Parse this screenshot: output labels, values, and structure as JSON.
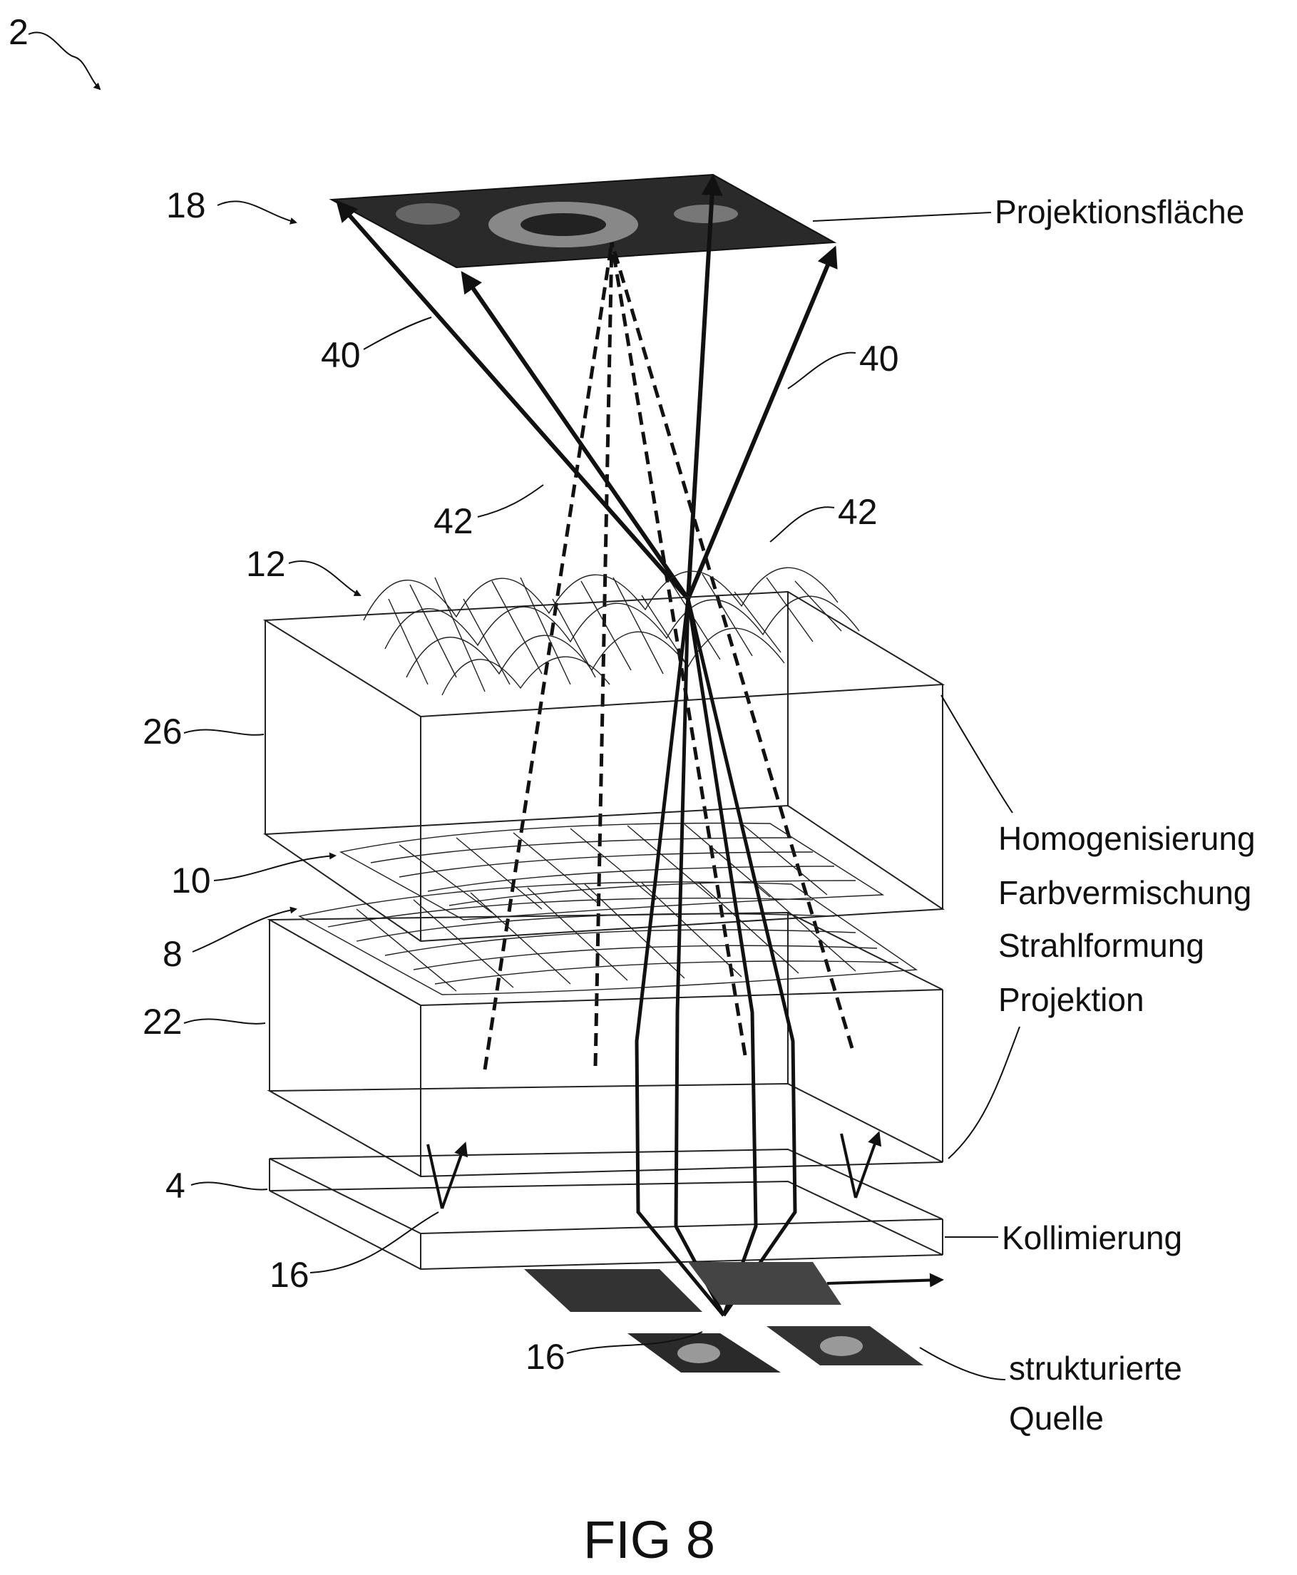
{
  "figure": {
    "caption": "FIG 8",
    "refs": {
      "r2": "2",
      "r18": "18",
      "r40a": "40",
      "r40b": "40",
      "r42a": "42",
      "r42b": "42",
      "r12": "12",
      "r26": "26",
      "r10": "10",
      "r8": "8",
      "r22": "22",
      "r4": "4",
      "r16a": "16",
      "r16b": "16"
    },
    "labels": {
      "projection_surface": "Projektionsfläche",
      "function_1": "Homogenisierung",
      "function_2": "Farbvermischung",
      "function_3": "Strahlformung",
      "function_4": "Projektion",
      "collimation": "Kollimierung",
      "source_1": "strukturierte",
      "source_2": "Quelle"
    }
  }
}
